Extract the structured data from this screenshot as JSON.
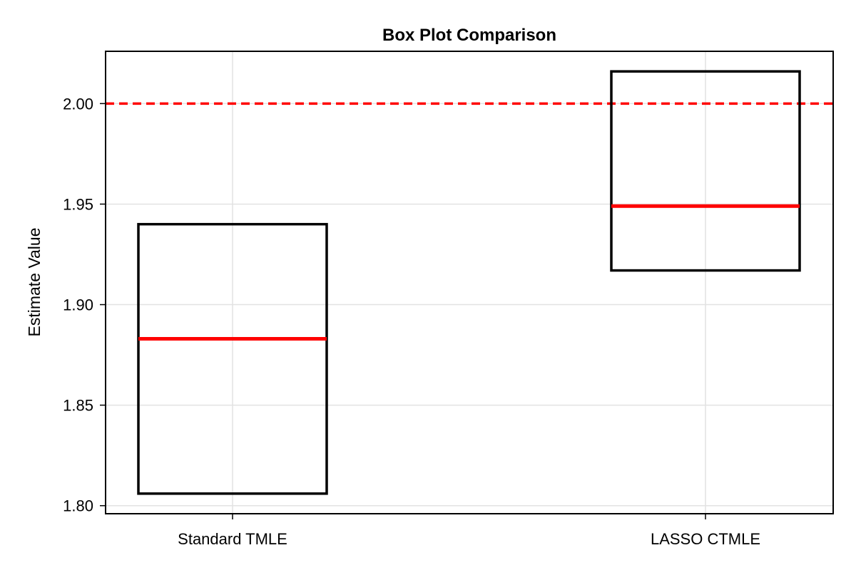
{
  "chart_data": {
    "type": "box",
    "title": "Box Plot Comparison",
    "xlabel": "",
    "ylabel": "Estimate Value",
    "ylim": [
      1.796,
      2.026
    ],
    "yticks": [
      1.8,
      1.85,
      1.9,
      1.95,
      2.0
    ],
    "ytick_labels": [
      "1.80",
      "1.85",
      "1.90",
      "1.95",
      "2.00"
    ],
    "categories": [
      "Standard TMLE",
      "LASSO CTMLE"
    ],
    "boxes": [
      {
        "category": "Standard TMLE",
        "q1": 1.806,
        "median": 1.883,
        "q3": 1.94
      },
      {
        "category": "LASSO CTMLE",
        "q1": 1.917,
        "median": 1.949,
        "q3": 2.016
      }
    ],
    "reference_line": {
      "y": 2.0,
      "style": "dashed",
      "color": "#ff0000"
    },
    "grid": true,
    "colors": {
      "box_edge": "#000000",
      "median": "#ff0000"
    }
  }
}
